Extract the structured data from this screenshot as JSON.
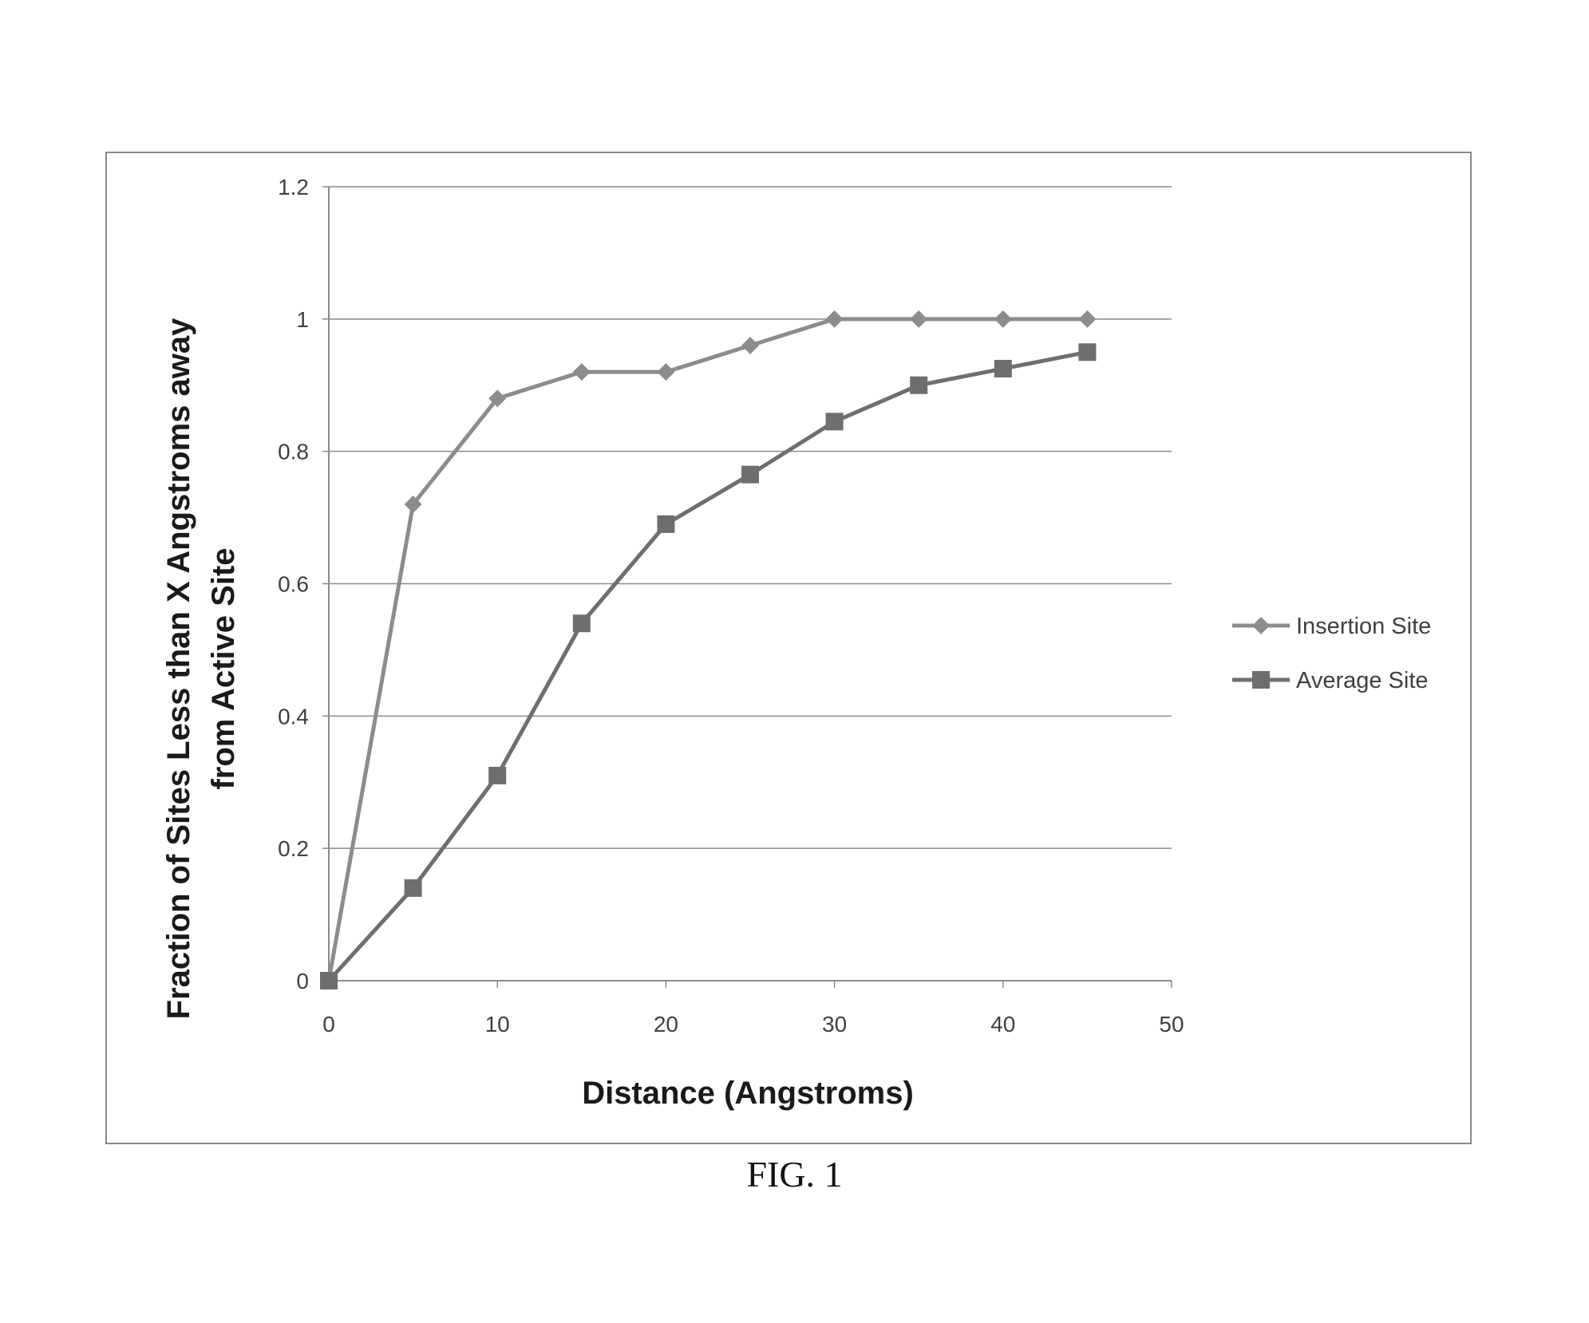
{
  "figure": {
    "caption": "FIG. 1"
  },
  "chart_data": {
    "type": "line",
    "title": "",
    "xlabel": "Distance (Angstroms)",
    "ylabel_lines": [
      "Fraction of Sites Less than X Angstroms away",
      "from Active Site"
    ],
    "xlim": [
      0,
      50
    ],
    "ylim": [
      0,
      1.2
    ],
    "xticks": [
      0,
      10,
      20,
      30,
      40,
      50
    ],
    "xtick_labels": [
      "0",
      "10",
      "20",
      "30",
      "40",
      "50"
    ],
    "yticks": [
      0,
      0.2,
      0.4,
      0.6,
      0.8,
      1,
      1.2
    ],
    "ytick_labels": [
      "0",
      "0.2",
      "0.4",
      "0.6",
      "0.8",
      "1",
      "1.2"
    ],
    "grid": {
      "horizontal": true,
      "vertical": false
    },
    "legend_position": "right",
    "series": [
      {
        "name": "Insertion Site",
        "marker": "diamond",
        "color": "#8c8c8c",
        "x": [
          0,
          5,
          10,
          15,
          20,
          25,
          30,
          35,
          40,
          45
        ],
        "y": [
          0,
          0.72,
          0.88,
          0.92,
          0.92,
          0.96,
          1.0,
          1.0,
          1.0,
          1.0
        ]
      },
      {
        "name": "Average Site",
        "marker": "square",
        "color": "#6e6e6e",
        "x": [
          0,
          5,
          10,
          15,
          20,
          25,
          30,
          35,
          40,
          45
        ],
        "y": [
          0,
          0.14,
          0.31,
          0.54,
          0.69,
          0.765,
          0.845,
          0.9,
          0.925,
          0.95
        ]
      }
    ]
  }
}
